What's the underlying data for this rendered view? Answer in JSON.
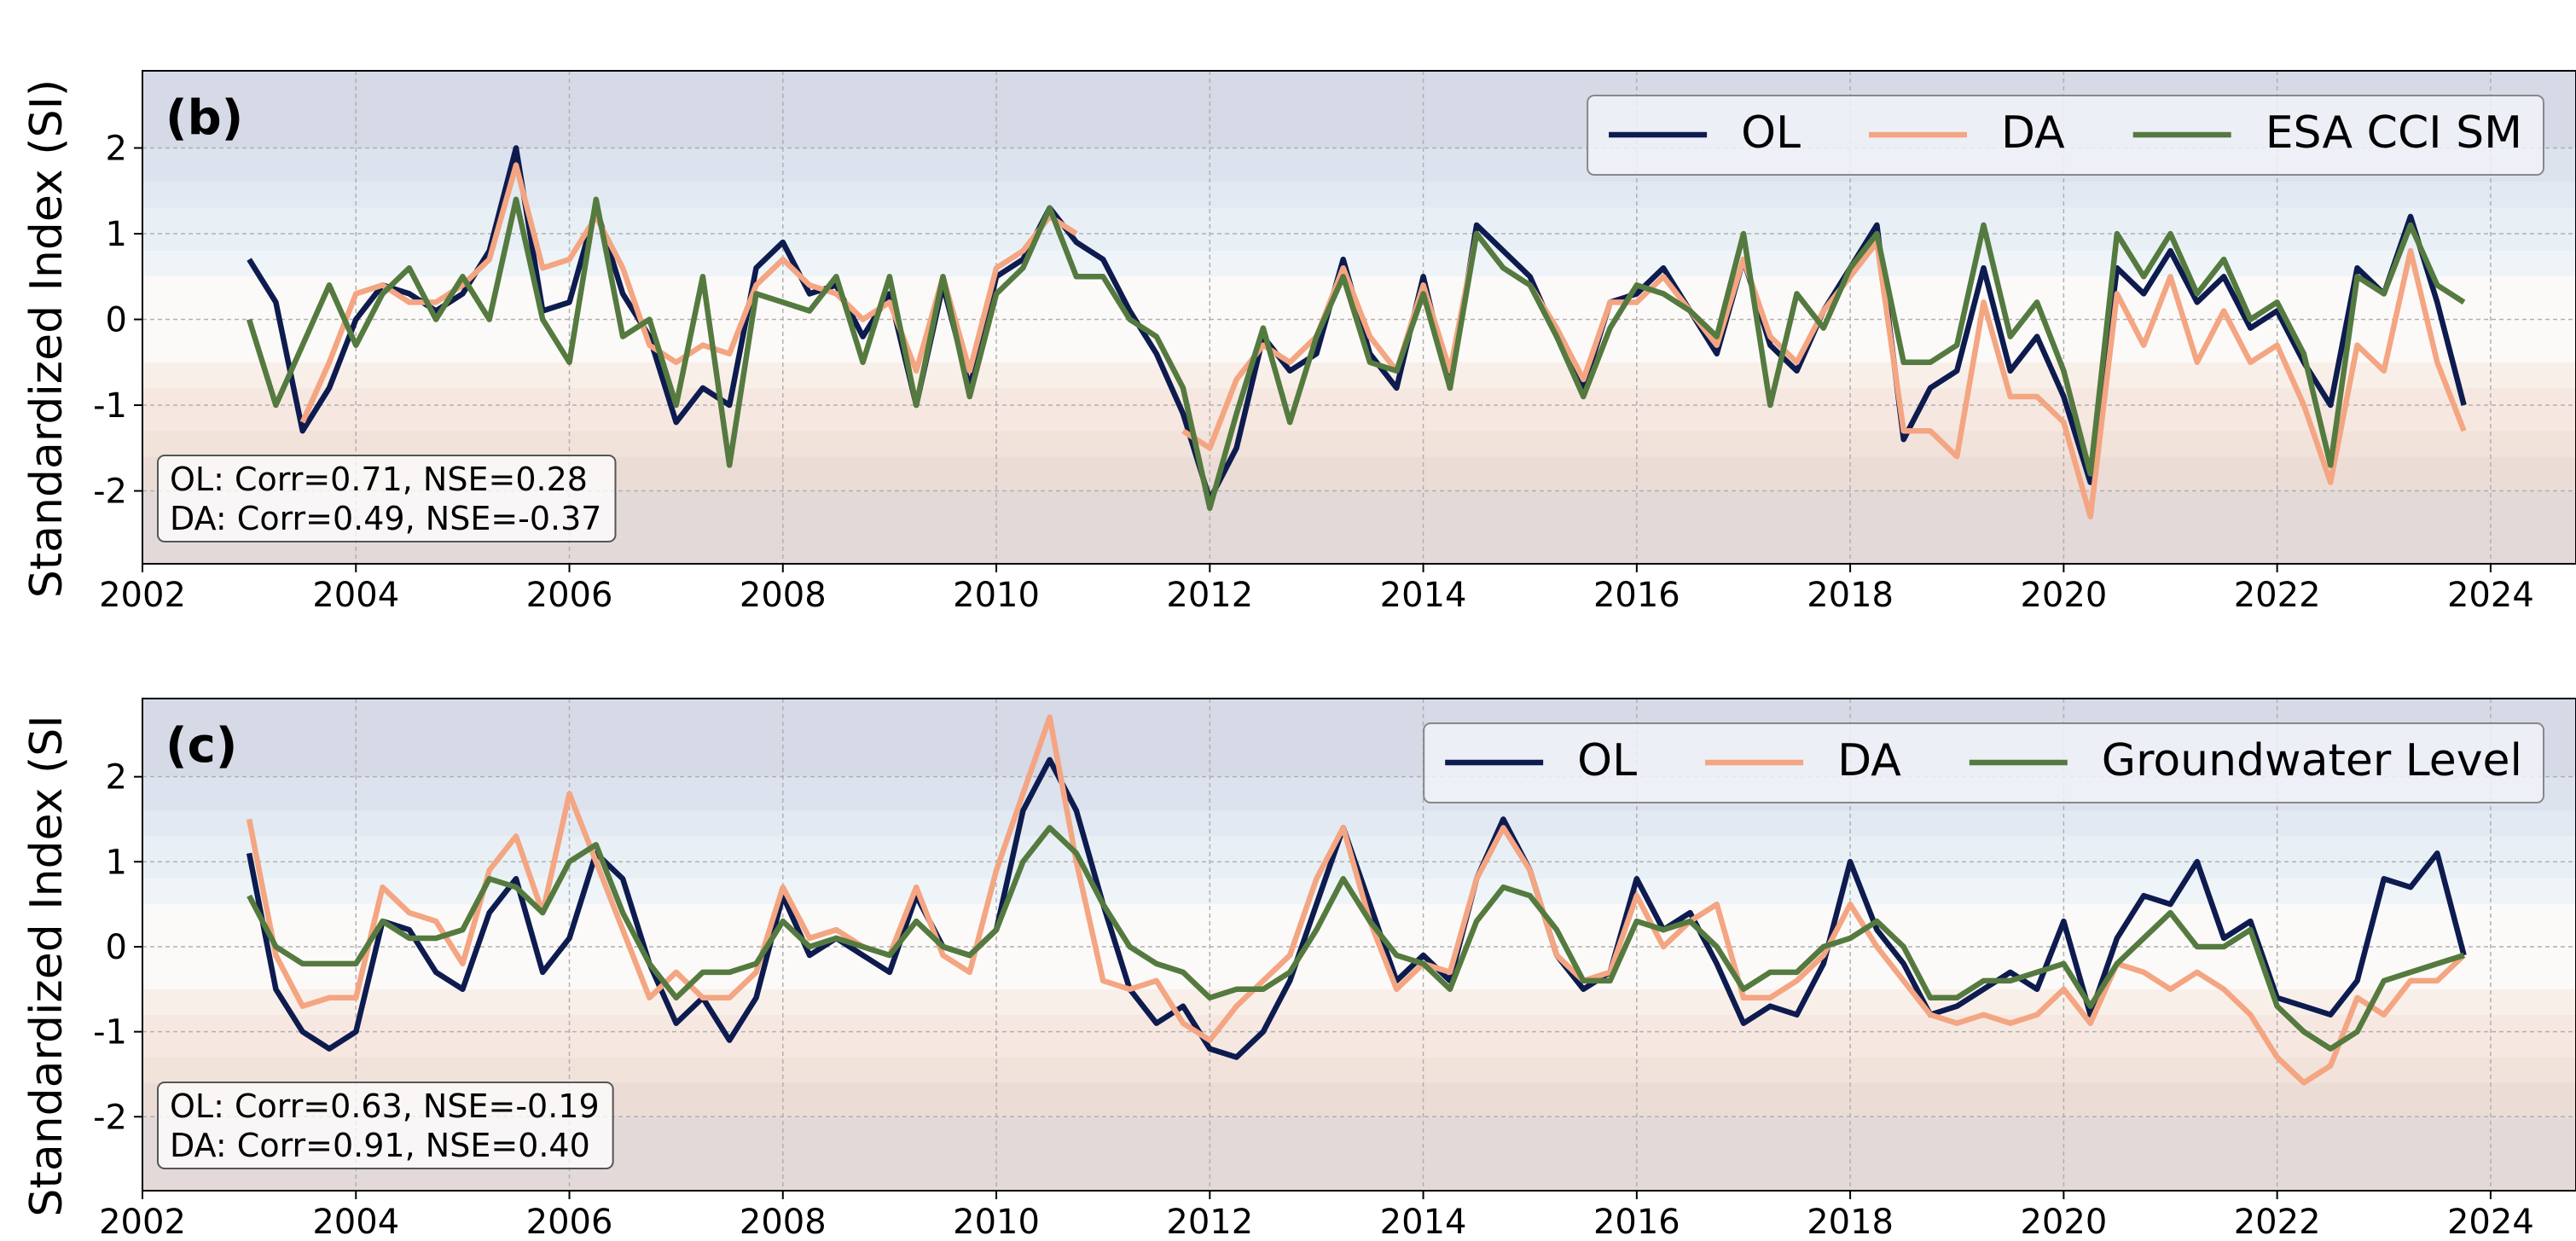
{
  "chart_data": [
    {
      "type": "line",
      "title": "(b)",
      "ylabel": "Standardized Index (SI)",
      "x": [
        2003.0,
        2003.25,
        2003.5,
        2003.75,
        2004.0,
        2004.25,
        2004.5,
        2004.75,
        2005.0,
        2005.25,
        2005.5,
        2005.75,
        2006.0,
        2006.25,
        2006.5,
        2006.75,
        2007.0,
        2007.25,
        2007.5,
        2007.75,
        2008.0,
        2008.25,
        2008.5,
        2008.75,
        2009.0,
        2009.25,
        2009.5,
        2009.75,
        2010.0,
        2010.25,
        2010.5,
        2010.75,
        2011.0,
        2011.25,
        2011.5,
        2011.75,
        2012.0,
        2012.25,
        2012.5,
        2012.75,
        2013.0,
        2013.25,
        2013.5,
        2013.75,
        2014.0,
        2014.25,
        2014.5,
        2014.75,
        2015.0,
        2015.25,
        2015.5,
        2015.75,
        2016.0,
        2016.25,
        2016.5,
        2016.75,
        2017.0,
        2017.25,
        2017.5,
        2017.75,
        2018.0,
        2018.25,
        2018.5,
        2018.75,
        2019.0,
        2019.25,
        2019.5,
        2019.75,
        2020.0,
        2020.25,
        2020.5,
        2020.75,
        2021.0,
        2021.25,
        2021.5,
        2021.75,
        2022.0,
        2022.25,
        2022.5,
        2022.75,
        2023.0,
        2023.25,
        2023.5,
        2023.75
      ],
      "series": [
        {
          "name": "OL",
          "color": "#0d1b4f",
          "values": [
            0.7,
            0.2,
            -1.3,
            -0.8,
            0.0,
            0.4,
            0.3,
            0.1,
            0.3,
            0.8,
            2.0,
            0.1,
            0.2,
            1.3,
            0.3,
            -0.2,
            -1.2,
            -0.8,
            -1.0,
            0.6,
            0.9,
            0.3,
            0.4,
            -0.2,
            0.3,
            -1.0,
            0.4,
            -0.8,
            0.5,
            0.7,
            1.3,
            0.9,
            0.7,
            0.1,
            -0.4,
            -1.1,
            -2.1,
            -1.5,
            -0.2,
            -0.6,
            -0.4,
            0.7,
            -0.4,
            -0.8,
            0.5,
            -0.8,
            1.1,
            0.8,
            0.5,
            -0.2,
            -0.8,
            0.2,
            0.3,
            0.6,
            0.1,
            -0.4,
            0.7,
            -0.3,
            -0.6,
            0.1,
            0.6,
            1.1,
            -1.4,
            -0.8,
            -0.6,
            0.6,
            -0.6,
            -0.2,
            -0.9,
            -1.9,
            0.6,
            0.3,
            0.8,
            0.2,
            0.5,
            -0.1,
            0.1,
            -0.5,
            -1.0,
            0.6,
            0.3,
            1.2,
            0.2,
            -1.0
          ]
        },
        {
          "name": "DA",
          "color": "#f4a582",
          "values": [
            0.8,
            null,
            -1.2,
            -0.5,
            0.3,
            0.4,
            0.2,
            0.2,
            0.4,
            0.7,
            1.8,
            0.6,
            0.7,
            1.2,
            0.6,
            -0.3,
            -0.5,
            -0.3,
            -0.4,
            0.4,
            0.7,
            0.4,
            0.3,
            0.0,
            0.2,
            -0.6,
            0.5,
            -0.6,
            0.6,
            0.8,
            1.2,
            1.0,
            null,
            0.9,
            null,
            -1.3,
            -1.5,
            -0.7,
            -0.3,
            -0.5,
            -0.2,
            0.6,
            -0.2,
            -0.6,
            0.4,
            -0.6,
            1.0,
            0.6,
            0.4,
            -0.1,
            -0.7,
            0.2,
            0.2,
            0.5,
            0.1,
            -0.3,
            0.7,
            -0.2,
            -0.5,
            0.1,
            0.5,
            0.9,
            -1.3,
            -1.3,
            -1.6,
            0.2,
            -0.9,
            -0.9,
            -1.2,
            -2.3,
            0.3,
            -0.3,
            0.5,
            -0.5,
            0.1,
            -0.5,
            -0.3,
            -1.0,
            -1.9,
            -0.3,
            -0.6,
            0.8,
            -0.5,
            -1.3
          ]
        },
        {
          "name": "ESA CCI SM",
          "color": "#557a3f",
          "values": [
            0.0,
            -1.0,
            -0.3,
            0.4,
            -0.3,
            0.3,
            0.6,
            0.0,
            0.5,
            0.0,
            1.4,
            0.0,
            -0.5,
            1.4,
            -0.2,
            0.0,
            -1.0,
            0.5,
            -1.7,
            0.3,
            0.2,
            0.1,
            0.5,
            -0.5,
            0.5,
            -1.0,
            0.5,
            -0.9,
            0.3,
            0.6,
            1.3,
            0.5,
            0.5,
            0.0,
            -0.2,
            -0.8,
            -2.2,
            -1.1,
            -0.1,
            -1.2,
            -0.2,
            0.5,
            -0.5,
            -0.6,
            0.3,
            -0.8,
            1.0,
            0.6,
            0.4,
            -0.2,
            -0.9,
            -0.1,
            0.4,
            0.3,
            0.1,
            -0.2,
            1.0,
            -1.0,
            0.3,
            -0.1,
            0.6,
            1.0,
            -0.5,
            -0.5,
            -0.3,
            1.1,
            -0.2,
            0.2,
            -0.6,
            -1.8,
            1.0,
            0.5,
            1.0,
            0.3,
            0.7,
            0.0,
            0.2,
            -0.4,
            -1.7,
            0.5,
            0.3,
            1.1,
            0.4,
            0.2
          ]
        }
      ],
      "xlim": [
        2002,
        2024.8
      ],
      "ylim": [
        -2.85,
        2.9
      ],
      "xticks": [
        2002,
        2004,
        2006,
        2008,
        2010,
        2012,
        2014,
        2016,
        2018,
        2020,
        2022,
        2024
      ],
      "yticks": [
        -2,
        -1,
        0,
        1,
        2
      ],
      "grid": true,
      "legend": "upper right",
      "annotations": [
        "OL: Corr=0.71, NSE=0.28",
        "DA: Corr=0.49, NSE=-0.37"
      ],
      "bands": [
        {
          "from": 2,
          "to": 3,
          "color": "#d6d9e6"
        },
        {
          "from": 1.6,
          "to": 2,
          "color": "#dde3ee"
        },
        {
          "from": 1.3,
          "to": 1.6,
          "color": "#e2e9f2"
        },
        {
          "from": 0.8,
          "to": 1.3,
          "color": "#e8f0f6"
        },
        {
          "from": 0.5,
          "to": 0.8,
          "color": "#eef4f8"
        },
        {
          "from": -0.5,
          "to": 0.5,
          "color": "#fcfaf8"
        },
        {
          "from": -0.8,
          "to": -0.5,
          "color": "#f9efe9"
        },
        {
          "from": -1.3,
          "to": -0.8,
          "color": "#f6e8e1"
        },
        {
          "from": -1.6,
          "to": -1.3,
          "color": "#f1e2da"
        },
        {
          "from": -2,
          "to": -1.6,
          "color": "#ecdcd6"
        },
        {
          "from": -3,
          "to": -2,
          "color": "#e4d9d9"
        }
      ]
    },
    {
      "type": "line",
      "title": "(c)",
      "ylabel": "Standardized Index (SI",
      "x": [
        2003.0,
        2003.25,
        2003.5,
        2003.75,
        2004.0,
        2004.25,
        2004.5,
        2004.75,
        2005.0,
        2005.25,
        2005.5,
        2005.75,
        2006.0,
        2006.25,
        2006.5,
        2006.75,
        2007.0,
        2007.25,
        2007.5,
        2007.75,
        2008.0,
        2008.25,
        2008.5,
        2008.75,
        2009.0,
        2009.25,
        2009.5,
        2009.75,
        2010.0,
        2010.25,
        2010.5,
        2010.75,
        2011.0,
        2011.25,
        2011.5,
        2011.75,
        2012.0,
        2012.25,
        2012.5,
        2012.75,
        2013.0,
        2013.25,
        2013.5,
        2013.75,
        2014.0,
        2014.25,
        2014.5,
        2014.75,
        2015.0,
        2015.25,
        2015.5,
        2015.75,
        2016.0,
        2016.25,
        2016.5,
        2016.75,
        2017.0,
        2017.25,
        2017.5,
        2017.75,
        2018.0,
        2018.25,
        2018.5,
        2018.75,
        2019.0,
        2019.25,
        2019.5,
        2019.75,
        2020.0,
        2020.25,
        2020.5,
        2020.75,
        2021.0,
        2021.25,
        2021.5,
        2021.75,
        2022.0,
        2022.25,
        2022.5,
        2022.75,
        2023.0,
        2023.25,
        2023.5,
        2023.75
      ],
      "series": [
        {
          "name": "OL",
          "color": "#0d1b4f",
          "values": [
            1.1,
            -0.5,
            -1.0,
            -1.2,
            -1.0,
            0.3,
            0.2,
            -0.3,
            -0.5,
            0.4,
            0.8,
            -0.3,
            0.1,
            1.1,
            0.8,
            -0.2,
            -0.9,
            -0.6,
            -1.1,
            -0.6,
            0.6,
            -0.1,
            0.1,
            -0.1,
            -0.3,
            0.6,
            0.0,
            -0.1,
            0.2,
            1.6,
            2.2,
            1.6,
            0.5,
            -0.5,
            -0.9,
            -0.7,
            -1.2,
            -1.3,
            -1.0,
            -0.4,
            0.5,
            1.4,
            0.5,
            -0.4,
            -0.1,
            -0.4,
            0.8,
            1.5,
            0.9,
            -0.1,
            -0.5,
            -0.3,
            0.8,
            0.2,
            0.4,
            -0.2,
            -0.9,
            -0.7,
            -0.8,
            -0.2,
            1.0,
            0.2,
            -0.2,
            -0.8,
            -0.7,
            -0.5,
            -0.3,
            -0.5,
            0.3,
            -0.8,
            0.1,
            0.6,
            0.5,
            1.0,
            0.1,
            0.3,
            -0.6,
            -0.7,
            -0.8,
            -0.4,
            0.8,
            0.7,
            1.1,
            -0.1
          ]
        },
        {
          "name": "DA",
          "color": "#f4a582",
          "values": [
            1.5,
            -0.1,
            -0.7,
            -0.6,
            -0.6,
            0.7,
            0.4,
            0.3,
            -0.2,
            0.9,
            1.3,
            0.4,
            1.8,
            1.0,
            0.2,
            -0.6,
            -0.3,
            -0.6,
            -0.6,
            -0.3,
            0.7,
            0.1,
            0.2,
            0.0,
            -0.1,
            0.7,
            -0.1,
            -0.3,
            0.9,
            1.8,
            2.7,
            1.0,
            -0.4,
            -0.5,
            -0.4,
            -0.9,
            -1.1,
            -0.7,
            -0.4,
            -0.1,
            0.8,
            1.4,
            0.3,
            -0.5,
            -0.2,
            -0.3,
            0.8,
            1.4,
            0.9,
            -0.1,
            -0.4,
            -0.3,
            0.6,
            0.0,
            0.3,
            0.5,
            -0.6,
            -0.6,
            -0.4,
            -0.1,
            0.5,
            0.0,
            -0.4,
            -0.8,
            -0.9,
            -0.8,
            -0.9,
            -0.8,
            -0.5,
            -0.9,
            -0.2,
            -0.3,
            -0.5,
            -0.3,
            -0.5,
            -0.8,
            -1.3,
            -1.6,
            -1.4,
            -0.6,
            -0.8,
            -0.4,
            -0.4,
            -0.1
          ]
        },
        {
          "name": "Groundwater Level",
          "color": "#557a3f",
          "values": [
            0.6,
            0.0,
            -0.2,
            -0.2,
            -0.2,
            0.3,
            0.1,
            0.1,
            0.2,
            0.8,
            0.7,
            0.4,
            1.0,
            1.2,
            0.4,
            -0.2,
            -0.6,
            -0.3,
            -0.3,
            -0.2,
            0.3,
            0.0,
            0.1,
            0.0,
            -0.1,
            0.3,
            0.0,
            -0.1,
            0.2,
            1.0,
            1.4,
            1.1,
            0.5,
            0.0,
            -0.2,
            -0.3,
            -0.6,
            -0.5,
            -0.5,
            -0.3,
            0.2,
            0.8,
            0.3,
            -0.1,
            -0.2,
            -0.5,
            0.3,
            0.7,
            0.6,
            0.2,
            -0.4,
            -0.4,
            0.3,
            0.2,
            0.3,
            0.0,
            -0.5,
            -0.3,
            -0.3,
            0.0,
            0.1,
            0.3,
            0.0,
            -0.6,
            -0.6,
            -0.4,
            -0.4,
            -0.3,
            -0.2,
            -0.7,
            -0.2,
            0.1,
            0.4,
            0.0,
            0.0,
            0.2,
            -0.7,
            -1.0,
            -1.2,
            -1.0,
            -0.4,
            -0.3,
            -0.2,
            -0.1
          ]
        }
      ],
      "xlim": [
        2002,
        2024.8
      ],
      "ylim": [
        -2.87,
        2.92
      ],
      "xticks": [
        2002,
        2004,
        2006,
        2008,
        2010,
        2012,
        2014,
        2016,
        2018,
        2020,
        2022,
        2024
      ],
      "yticks": [
        -2,
        -1,
        0,
        1,
        2
      ],
      "grid": true,
      "legend": "upper right",
      "annotations": [
        "OL: Corr=0.63, NSE=-0.19",
        "DA: Corr=0.91, NSE=0.40"
      ],
      "bands": [
        {
          "from": 2,
          "to": 3,
          "color": "#d6d9e6"
        },
        {
          "from": 1.6,
          "to": 2,
          "color": "#dde3ee"
        },
        {
          "from": 1.3,
          "to": 1.6,
          "color": "#e2e9f2"
        },
        {
          "from": 0.8,
          "to": 1.3,
          "color": "#e8f0f6"
        },
        {
          "from": 0.5,
          "to": 0.8,
          "color": "#eef4f8"
        },
        {
          "from": -0.5,
          "to": 0.5,
          "color": "#fcfaf8"
        },
        {
          "from": -0.8,
          "to": -0.5,
          "color": "#f9efe9"
        },
        {
          "from": -1.3,
          "to": -0.8,
          "color": "#f6e8e1"
        },
        {
          "from": -1.6,
          "to": -1.3,
          "color": "#f1e2da"
        },
        {
          "from": -2,
          "to": -1.6,
          "color": "#ecdcd6"
        },
        {
          "from": -3,
          "to": -2,
          "color": "#e4d9d9"
        }
      ]
    }
  ]
}
